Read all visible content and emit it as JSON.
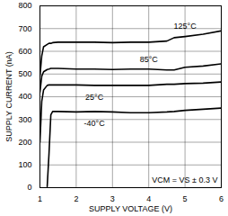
{
  "chart_data": {
    "type": "line",
    "x_label": "SUPPLY VOLTAGE (V)",
    "y_label": "SUPPLY CURRENT (nA)",
    "annotations": [
      "VCM = VS ± 0.3 V"
    ],
    "x": [
      1,
      1.05,
      1.1,
      1.2,
      1.25,
      1.3,
      1.35,
      1.5,
      2,
      2.5,
      3,
      3.5,
      4,
      4.5,
      4.7,
      5,
      5.5,
      6
    ],
    "series": [
      {
        "name": "125°C",
        "color": "#000000",
        "values": [
          490,
          580,
          620,
          630,
          635,
          635,
          638,
          640,
          640,
          640,
          638,
          640,
          640,
          645,
          660,
          665,
          675,
          690
        ]
      },
      {
        "name": "85°C",
        "color": "#000000",
        "values": [
          420,
          490,
          510,
          520,
          522,
          525,
          525,
          525,
          522,
          522,
          520,
          522,
          522,
          518,
          518,
          530,
          535,
          545
        ]
      },
      {
        "name": "25°C",
        "color": "#000000",
        "values": [
          200,
          380,
          430,
          450,
          452,
          452,
          452,
          452,
          452,
          450,
          450,
          450,
          450,
          455,
          455,
          458,
          460,
          465
        ]
      },
      {
        "name": "-40°C",
        "color": "#000000",
        "values": [
          null,
          null,
          null,
          5,
          150,
          320,
          335,
          335,
          333,
          335,
          333,
          330,
          330,
          333,
          335,
          340,
          345,
          350
        ]
      }
    ],
    "xlim": [
      1,
      6
    ],
    "xticks": [
      1,
      2,
      3,
      4,
      5,
      6
    ],
    "ylim": [
      0,
      800
    ],
    "yticks": [
      0,
      100,
      200,
      300,
      400,
      500,
      600,
      700,
      800
    ],
    "grid": true
  }
}
